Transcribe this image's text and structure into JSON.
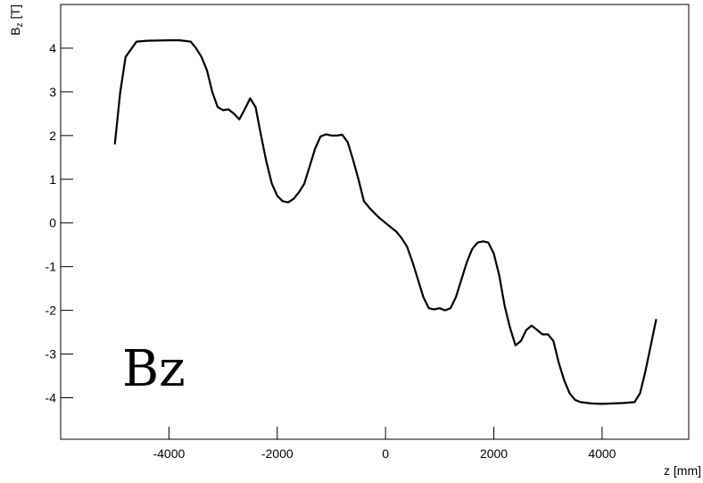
{
  "chart_data": {
    "type": "line",
    "annotation": "Bz",
    "y_label": {
      "base": "B",
      "sub": "z",
      "unit": "[T]"
    },
    "x_label": "z [mm]",
    "xlim": [
      -6000,
      5600
    ],
    "ylim": [
      -4.95,
      5
    ],
    "xticks": [
      -4000,
      -2000,
      0,
      2000,
      4000
    ],
    "yticks": [
      -4,
      -3,
      -2,
      -1,
      0,
      1,
      2,
      3,
      4
    ],
    "series": [
      {
        "color": "#000000",
        "x": [
          -5000,
          -4900,
          -4800,
          -4600,
          -4400,
          -4000,
          -3800,
          -3600,
          -3500,
          -3400,
          -3300,
          -3200,
          -3100,
          -3000,
          -2900,
          -2800,
          -2700,
          -2600,
          -2500,
          -2400,
          -2300,
          -2200,
          -2100,
          -2000,
          -1900,
          -1800,
          -1700,
          -1600,
          -1500,
          -1400,
          -1300,
          -1200,
          -1100,
          -1000,
          -900,
          -800,
          -700,
          -600,
          -500,
          -400,
          -300,
          -200,
          -100,
          0,
          100,
          200,
          300,
          400,
          500,
          600,
          700,
          800,
          900,
          1000,
          1100,
          1200,
          1300,
          1400,
          1500,
          1600,
          1700,
          1800,
          1900,
          2000,
          2100,
          2200,
          2300,
          2400,
          2500,
          2600,
          2700,
          2800,
          2900,
          3000,
          3100,
          3200,
          3300,
          3400,
          3500,
          3600,
          3800,
          4000,
          4400,
          4600,
          4700,
          4800,
          4900,
          5000
        ],
        "values": [
          1.8,
          3.0,
          3.8,
          4.15,
          4.17,
          4.18,
          4.18,
          4.15,
          4.0,
          3.8,
          3.5,
          3.0,
          2.65,
          2.58,
          2.6,
          2.5,
          2.37,
          2.6,
          2.85,
          2.65,
          2.0,
          1.4,
          0.9,
          0.62,
          0.5,
          0.47,
          0.55,
          0.7,
          0.9,
          1.3,
          1.7,
          1.98,
          2.03,
          2.0,
          2.0,
          2.02,
          1.85,
          1.45,
          1.0,
          0.5,
          0.35,
          0.22,
          0.1,
          0.0,
          -0.1,
          -0.2,
          -0.35,
          -0.55,
          -0.9,
          -1.3,
          -1.7,
          -1.95,
          -1.98,
          -1.95,
          -2.0,
          -1.95,
          -1.7,
          -1.3,
          -0.9,
          -0.6,
          -0.45,
          -0.42,
          -0.45,
          -0.7,
          -1.2,
          -1.9,
          -2.4,
          -2.8,
          -2.7,
          -2.45,
          -2.35,
          -2.45,
          -2.55,
          -2.55,
          -2.7,
          -3.2,
          -3.6,
          -3.9,
          -4.05,
          -4.1,
          -4.13,
          -4.14,
          -4.12,
          -4.1,
          -3.9,
          -3.4,
          -2.8,
          -2.2
        ]
      }
    ]
  }
}
